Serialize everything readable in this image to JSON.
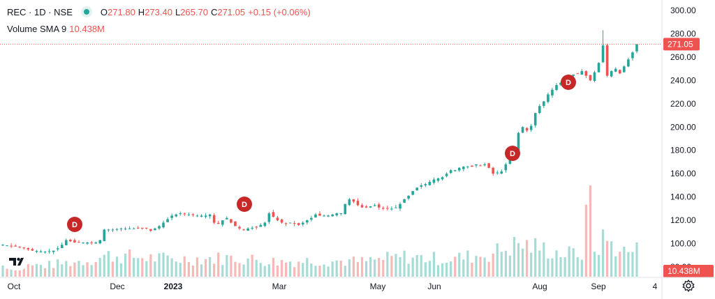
{
  "header": {
    "symbol": "REC · 1D · NSE",
    "o_label": "O",
    "o_value": "271.80",
    "h_label": "H",
    "h_value": "273.40",
    "l_label": "L",
    "l_value": "265.70",
    "c_label": "C",
    "c_value": "271.05",
    "change": "+0.15 (+0.06%)"
  },
  "volume": {
    "label": "Volume SMA 9",
    "value": "10.438M"
  },
  "colors": {
    "up": "#26a69a",
    "down": "#ef5350",
    "dividend": "#c62828"
  },
  "icons": {
    "logo": "tradingview-logo-icon",
    "settings": "gear-icon"
  },
  "chart_data": {
    "type": "candlestick",
    "y_ticks": [
      "300.00",
      "280.00",
      "260.00",
      "240.00",
      "220.00",
      "200.00",
      "180.00",
      "160.00",
      "140.00",
      "120.00",
      "100.00",
      "80.00"
    ],
    "ylim": [
      78,
      306
    ],
    "x_ticks": [
      "Oct",
      "Dec",
      "2023",
      "Mar",
      "May",
      "Jun",
      "Aug",
      "Sep",
      "4"
    ],
    "last_price": 271.05,
    "last_price_label": "271.05",
    "volume_sma_label": "10.438M",
    "dividend_marker": "D",
    "dividend_count": 4,
    "close_path": [
      [
        0,
        99
      ],
      [
        4,
        97
      ],
      [
        7,
        94
      ],
      [
        10,
        93
      ],
      [
        12,
        94
      ],
      [
        13,
        96
      ],
      [
        14,
        99
      ],
      [
        15,
        103
      ],
      [
        16,
        102
      ],
      [
        17,
        101
      ],
      [
        19,
        101
      ],
      [
        21,
        101
      ],
      [
        22,
        101
      ],
      [
        23,
        103
      ],
      [
        24,
        112
      ],
      [
        26,
        112
      ],
      [
        28,
        113
      ],
      [
        30,
        113
      ],
      [
        32,
        113
      ],
      [
        34,
        113
      ],
      [
        35,
        111
      ],
      [
        37,
        115
      ],
      [
        38,
        118
      ],
      [
        39,
        121
      ],
      [
        40,
        124
      ],
      [
        41,
        125
      ],
      [
        42,
        126
      ],
      [
        44,
        125
      ],
      [
        46,
        124
      ],
      [
        48,
        124
      ],
      [
        49,
        125
      ],
      [
        50,
        118
      ],
      [
        51,
        117
      ],
      [
        52,
        120
      ],
      [
        53,
        122
      ],
      [
        54,
        118
      ],
      [
        55,
        115
      ],
      [
        56,
        113
      ],
      [
        57,
        112
      ],
      [
        58,
        113
      ],
      [
        60,
        114
      ],
      [
        62,
        118
      ],
      [
        63,
        126
      ],
      [
        64,
        123
      ],
      [
        65,
        120
      ],
      [
        66,
        118
      ],
      [
        67,
        117
      ],
      [
        68,
        118
      ],
      [
        69,
        117
      ],
      [
        70,
        116
      ],
      [
        71,
        118
      ],
      [
        72,
        120
      ],
      [
        73,
        122
      ],
      [
        74,
        125
      ],
      [
        75,
        124
      ],
      [
        76,
        124
      ],
      [
        77,
        124
      ],
      [
        78,
        125
      ],
      [
        79,
        126
      ],
      [
        80,
        126
      ],
      [
        81,
        134
      ],
      [
        82,
        138
      ],
      [
        83,
        136
      ],
      [
        84,
        133
      ],
      [
        85,
        131
      ],
      [
        86,
        131
      ],
      [
        87,
        132
      ],
      [
        88,
        133
      ],
      [
        89,
        131
      ],
      [
        90,
        130
      ],
      [
        91,
        130
      ],
      [
        92,
        130
      ],
      [
        93,
        131
      ],
      [
        94,
        134
      ],
      [
        95,
        138
      ],
      [
        96,
        141
      ],
      [
        97,
        145
      ],
      [
        98,
        148
      ],
      [
        99,
        150
      ],
      [
        100,
        151
      ],
      [
        101,
        153
      ],
      [
        102,
        155
      ],
      [
        103,
        156
      ],
      [
        104,
        157
      ],
      [
        105,
        160
      ],
      [
        106,
        163
      ],
      [
        107,
        163
      ],
      [
        108,
        165
      ],
      [
        109,
        166
      ],
      [
        110,
        166
      ],
      [
        111,
        166
      ],
      [
        112,
        168
      ],
      [
        113,
        167
      ],
      [
        114,
        168
      ],
      [
        115,
        165
      ],
      [
        116,
        160
      ],
      [
        117,
        161
      ],
      [
        118,
        162
      ],
      [
        119,
        168
      ],
      [
        120,
        172
      ],
      [
        121,
        178
      ],
      [
        122,
        195
      ],
      [
        123,
        200
      ],
      [
        124,
        197
      ],
      [
        125,
        201
      ],
      [
        126,
        212
      ],
      [
        127,
        218
      ],
      [
        128,
        222
      ],
      [
        129,
        228
      ],
      [
        130,
        232
      ],
      [
        131,
        236
      ],
      [
        132,
        238
      ],
      [
        133,
        240
      ],
      [
        134,
        243
      ],
      [
        135,
        245
      ],
      [
        136,
        246
      ],
      [
        137,
        248
      ],
      [
        138,
        244
      ],
      [
        139,
        240
      ],
      [
        140,
        247
      ],
      [
        141,
        255
      ],
      [
        142,
        270
      ],
      [
        143,
        244
      ],
      [
        144,
        248
      ],
      [
        145,
        250
      ],
      [
        146,
        246
      ],
      [
        147,
        252
      ],
      [
        148,
        258
      ],
      [
        149,
        264
      ],
      [
        150,
        271
      ]
    ],
    "volume_profile": [
      [
        0,
        18
      ],
      [
        10,
        18
      ],
      [
        20,
        26
      ],
      [
        25,
        34
      ],
      [
        40,
        28
      ],
      [
        55,
        30
      ],
      [
        65,
        24
      ],
      [
        75,
        26
      ],
      [
        85,
        24
      ],
      [
        95,
        32
      ],
      [
        105,
        28
      ],
      [
        115,
        36
      ],
      [
        122,
        52
      ],
      [
        127,
        46
      ],
      [
        133,
        36
      ],
      [
        137,
        38
      ],
      [
        139,
        131
      ],
      [
        140,
        38
      ],
      [
        142,
        60
      ],
      [
        144,
        52
      ],
      [
        147,
        40
      ],
      [
        150,
        42
      ]
    ]
  }
}
